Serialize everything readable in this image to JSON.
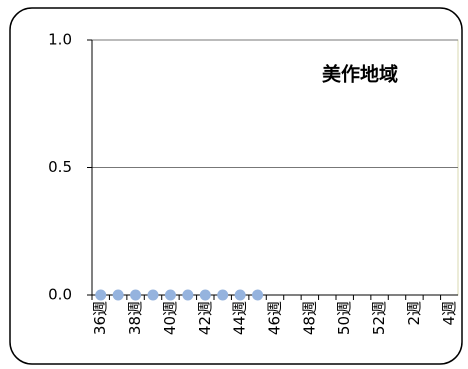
{
  "chart_data": {
    "type": "line",
    "title": "美作地域",
    "categories": [
      "36週",
      null,
      "38週",
      null,
      "40週",
      null,
      "42週",
      null,
      "44週",
      null,
      "46週",
      null,
      "48週",
      null,
      "50週",
      null,
      "52週",
      null,
      "2週",
      null,
      "4週"
    ],
    "series": [
      {
        "name": "美作地域",
        "color": "#95b3de",
        "values": [
          0,
          0,
          0,
          0,
          0,
          0,
          0,
          0,
          0,
          0,
          null,
          null,
          null,
          null,
          null,
          null,
          null,
          null,
          null,
          null,
          null
        ]
      }
    ],
    "ylim": [
      0,
      1
    ],
    "yticks": [
      {
        "value": 0,
        "label": "0.0"
      },
      {
        "value": 0.5,
        "label": "0.5"
      },
      {
        "value": 1,
        "label": "1.0"
      }
    ],
    "grid": true
  }
}
